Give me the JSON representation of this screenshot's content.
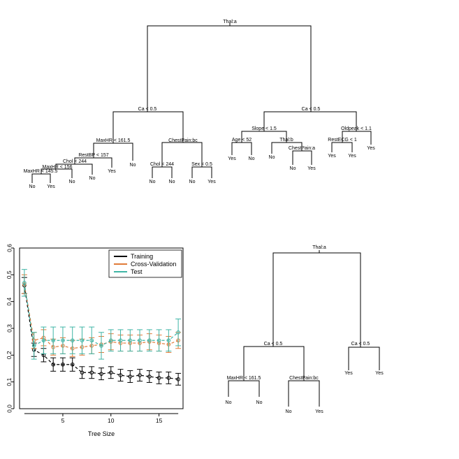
{
  "tree_full": {
    "root": "Thal:a",
    "left_split": "Ca < 0.5",
    "right_split": "Ca < 0.5",
    "maxhr_161": "MaxHR < 161.5",
    "restbp": "RestBP < 157",
    "chol_244a": "Chol < 244",
    "maxhr_156": "MaxHR < 156",
    "maxhr_145": "MaxHR < 145.5",
    "chestpain_bc": "ChestPain:bc",
    "chol_244b": "Chol < 244",
    "sex": "Sex < 0.5",
    "slope": "Slope < 1.5",
    "age": "Age < 52",
    "thal_b": "Thal:b",
    "chestpain_a": "ChestPain:a",
    "oldpeak": "Oldpeak < 1.1",
    "restecg": "RestECG < 1",
    "leaves": {
      "l1": "No",
      "l2": "Yes",
      "l3": "No",
      "l4": "No",
      "l5": "Yes",
      "l6": "No",
      "l7": "No",
      "l8": "No",
      "l9": "No",
      "l10": "Yes",
      "l11": "Yes",
      "l12": "No",
      "l13": "No",
      "l14": "No",
      "l15": "Yes",
      "l16": "Yes",
      "l17": "Yes",
      "l18": "Yes"
    }
  },
  "tree_pruned": {
    "root": "Thal:a",
    "left_split": "Ca < 0.5",
    "right_split": "Ca < 0.5",
    "maxhr": "MaxHR < 161.5",
    "chestpain": "ChestPain:bc",
    "leaves": {
      "l1": "No",
      "l2": "No",
      "l3": "No",
      "l4": "Yes",
      "l5": "Yes",
      "l6": "Yes"
    }
  },
  "chart_data": {
    "type": "line",
    "xlabel": "Tree Size",
    "ylabel": "",
    "xlim": [
      0.5,
      17.5
    ],
    "ylim": [
      0,
      0.6
    ],
    "xticks": [
      "5",
      "10",
      "15"
    ],
    "yticks": [
      "0.0",
      "0.1",
      "0.2",
      "0.3",
      "0.4",
      "0.5",
      "0.6"
    ],
    "legend_position": "top-right",
    "x": [
      1,
      2,
      3,
      4,
      5,
      6,
      7,
      8,
      9,
      10,
      11,
      12,
      13,
      14,
      15,
      16,
      17
    ],
    "series": [
      {
        "name": "Training",
        "color": "#000000",
        "values": [
          0.46,
          0.22,
          0.2,
          0.165,
          0.165,
          0.165,
          0.135,
          0.135,
          0.13,
          0.135,
          0.125,
          0.12,
          0.125,
          0.12,
          0.115,
          0.115,
          0.11
        ],
        "err": [
          0.03,
          0.025,
          0.025,
          0.025,
          0.025,
          0.025,
          0.022,
          0.022,
          0.022,
          0.022,
          0.022,
          0.022,
          0.022,
          0.022,
          0.022,
          0.022,
          0.022
        ]
      },
      {
        "name": "Cross-Validation",
        "color": "#e07b39",
        "values": [
          0.465,
          0.255,
          0.265,
          0.23,
          0.235,
          0.225,
          0.23,
          0.235,
          0.24,
          0.25,
          0.245,
          0.245,
          0.245,
          0.25,
          0.245,
          0.24,
          0.255
        ],
        "err": [
          0.035,
          0.03,
          0.03,
          0.03,
          0.03,
          0.03,
          0.03,
          0.03,
          0.03,
          0.03,
          0.03,
          0.03,
          0.03,
          0.03,
          0.03,
          0.03,
          0.03
        ]
      },
      {
        "name": "Test",
        "color": "#3fb5a6",
        "values": [
          0.47,
          0.235,
          0.255,
          0.255,
          0.255,
          0.255,
          0.255,
          0.255,
          0.235,
          0.255,
          0.255,
          0.255,
          0.255,
          0.255,
          0.255,
          0.255,
          0.285
        ],
        "err": [
          0.05,
          0.05,
          0.05,
          0.05,
          0.05,
          0.05,
          0.05,
          0.05,
          0.05,
          0.04,
          0.04,
          0.04,
          0.04,
          0.04,
          0.04,
          0.04,
          0.05
        ]
      }
    ]
  }
}
